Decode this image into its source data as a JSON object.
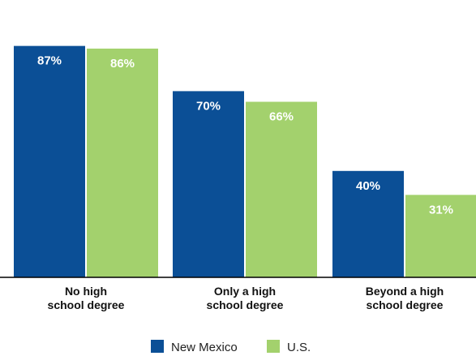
{
  "chart_data": {
    "type": "bar",
    "categories": [
      [
        "No high",
        "school degree"
      ],
      [
        "Only a high",
        "school degree"
      ],
      [
        "Beyond a high",
        "school degree"
      ]
    ],
    "series": [
      {
        "name": "New Mexico",
        "values": [
          87,
          70,
          40
        ],
        "labels": [
          "87%",
          "70%",
          "40%"
        ],
        "color": "#0b4f96"
      },
      {
        "name": "U.S.",
        "values": [
          86,
          66,
          31
        ],
        "labels": [
          "86%",
          "66%",
          "31%"
        ],
        "color": "#a3d16d"
      }
    ],
    "ylim": [
      0,
      100
    ],
    "grid": false,
    "legend": "bottom-center"
  }
}
